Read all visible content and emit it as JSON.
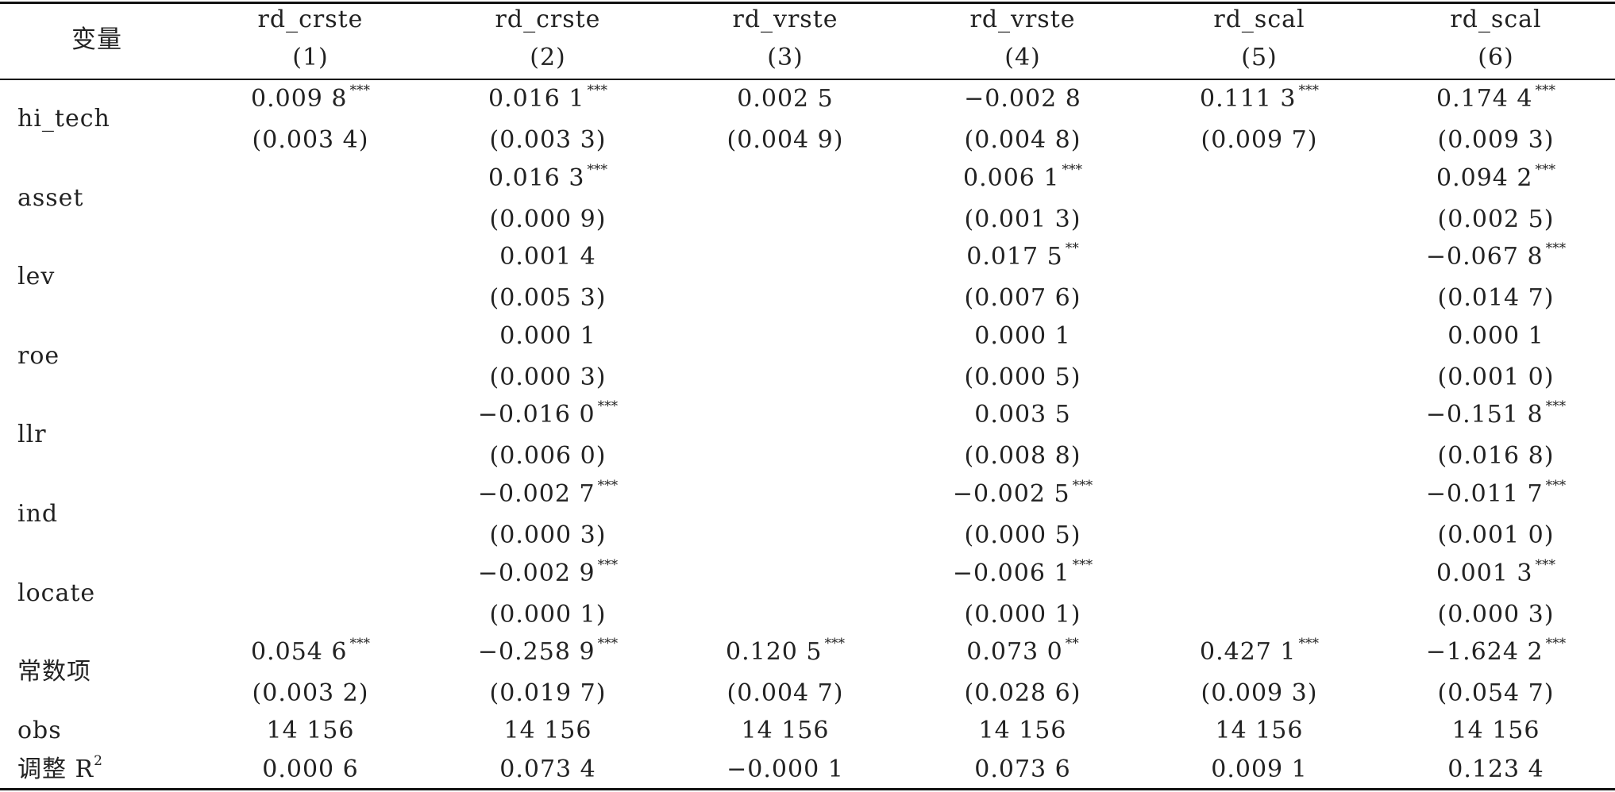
{
  "header": {
    "variable_label": "变量",
    "columns": [
      {
        "name": "rd_crste",
        "num": "(1)"
      },
      {
        "name": "rd_crste",
        "num": "(2)"
      },
      {
        "name": "rd_vrste",
        "num": "(3)"
      },
      {
        "name": "rd_vrste",
        "num": "(4)"
      },
      {
        "name": "rd_scal",
        "num": "(5)"
      },
      {
        "name": "rd_scal",
        "num": "(6)"
      }
    ]
  },
  "rows": [
    {
      "label": "hi_tech",
      "coef": [
        [
          "0.009 8",
          "***"
        ],
        [
          "0.016 1",
          "***"
        ],
        [
          "0.002 5",
          ""
        ],
        [
          "−0.002 8",
          ""
        ],
        [
          "0.111 3",
          "***"
        ],
        [
          "0.174 4",
          "***"
        ]
      ],
      "se": [
        "(0.003 4)",
        "(0.003 3)",
        "(0.004 9)",
        "(0.004 8)",
        "(0.009 7)",
        "(0.009 3)"
      ]
    },
    {
      "label": "asset",
      "coef": [
        [
          "",
          ""
        ],
        [
          "0.016 3",
          "***"
        ],
        [
          "",
          ""
        ],
        [
          "0.006 1",
          "***"
        ],
        [
          "",
          ""
        ],
        [
          "0.094 2",
          "***"
        ]
      ],
      "se": [
        "",
        "(0.000 9)",
        "",
        "(0.001 3)",
        "",
        "(0.002 5)"
      ]
    },
    {
      "label": "lev",
      "coef": [
        [
          "",
          ""
        ],
        [
          "0.001 4",
          ""
        ],
        [
          "",
          ""
        ],
        [
          "0.017 5",
          "**"
        ],
        [
          "",
          ""
        ],
        [
          "−0.067 8",
          "***"
        ]
      ],
      "se": [
        "",
        "(0.005 3)",
        "",
        "(0.007 6)",
        "",
        "(0.014 7)"
      ]
    },
    {
      "label": "roe",
      "coef": [
        [
          "",
          ""
        ],
        [
          "0.000 1",
          ""
        ],
        [
          "",
          ""
        ],
        [
          "0.000 1",
          ""
        ],
        [
          "",
          ""
        ],
        [
          "0.000 1",
          ""
        ]
      ],
      "se": [
        "",
        "(0.000 3)",
        "",
        "(0.000 5)",
        "",
        "(0.001 0)"
      ]
    },
    {
      "label": "llr",
      "coef": [
        [
          "",
          ""
        ],
        [
          "−0.016 0",
          "***"
        ],
        [
          "",
          ""
        ],
        [
          "0.003 5",
          ""
        ],
        [
          "",
          ""
        ],
        [
          "−0.151 8",
          "***"
        ]
      ],
      "se": [
        "",
        "(0.006 0)",
        "",
        "(0.008 8)",
        "",
        "(0.016 8)"
      ]
    },
    {
      "label": "ind",
      "coef": [
        [
          "",
          ""
        ],
        [
          "−0.002 7",
          "***"
        ],
        [
          "",
          ""
        ],
        [
          "−0.002 5",
          "***"
        ],
        [
          "",
          ""
        ],
        [
          "−0.011 7",
          "***"
        ]
      ],
      "se": [
        "",
        "(0.000 3)",
        "",
        "(0.000 5)",
        "",
        "(0.001 0)"
      ]
    },
    {
      "label": "locate",
      "coef": [
        [
          "",
          ""
        ],
        [
          "−0.002 9",
          "***"
        ],
        [
          "",
          ""
        ],
        [
          "−0.006 1",
          "***"
        ],
        [
          "",
          ""
        ],
        [
          "0.001 3",
          "***"
        ]
      ],
      "se": [
        "",
        "(0.000 1)",
        "",
        "(0.000 1)",
        "",
        "(0.000 3)"
      ]
    },
    {
      "label": "常数项",
      "coef": [
        [
          "0.054 6",
          "***"
        ],
        [
          "−0.258 9",
          "***"
        ],
        [
          "0.120 5",
          "***"
        ],
        [
          "0.073 0",
          "**"
        ],
        [
          "0.427 1",
          "***"
        ],
        [
          "−1.624 2",
          "***"
        ]
      ],
      "se": [
        "(0.003 2)",
        "(0.019 7)",
        "(0.004 7)",
        "(0.028 6)",
        "(0.009 3)",
        "(0.054 7)"
      ]
    }
  ],
  "obs": {
    "label": "obs",
    "values": [
      "14 156",
      "14 156",
      "14 156",
      "14 156",
      "14 156",
      "14 156"
    ]
  },
  "adj_r2": {
    "label": "调整 R",
    "sup": "2",
    "values": [
      "0.000 6",
      "0.073 4",
      "−0.000 1",
      "0.073 6",
      "0.009 1",
      "0.123 4"
    ]
  }
}
